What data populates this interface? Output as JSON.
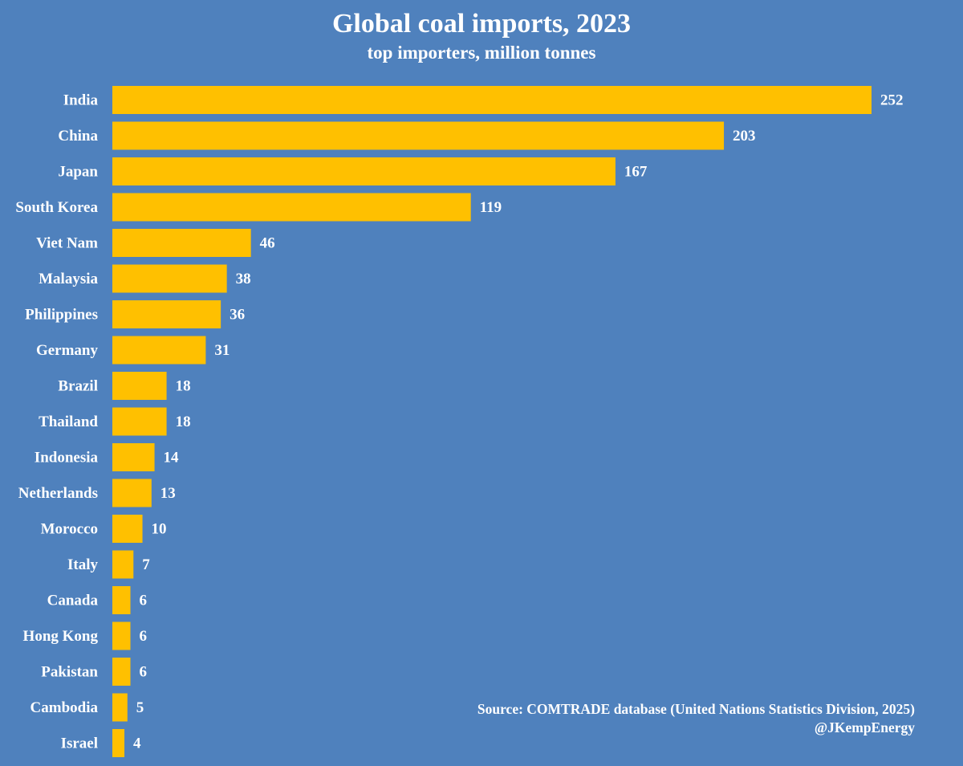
{
  "chart_data": {
    "type": "bar",
    "orientation": "horizontal",
    "title": "Global coal imports, 2023",
    "subtitle": "top importers, million tonnes",
    "categories": [
      "India",
      "China",
      "Japan",
      "South Korea",
      "Viet Nam",
      "Malaysia",
      "Philippines",
      "Germany",
      "Brazil",
      "Thailand",
      "Indonesia",
      "Netherlands",
      "Morocco",
      "Italy",
      "Canada",
      "Hong Kong",
      "Pakistan",
      "Cambodia",
      "Israel"
    ],
    "values": [
      252,
      203,
      167,
      119,
      46,
      38,
      36,
      31,
      18,
      18,
      14,
      13,
      10,
      7,
      6,
      6,
      6,
      5,
      4
    ],
    "xlabel": "",
    "ylabel": "",
    "xlim": [
      0,
      252
    ],
    "grid": false,
    "bar_color": "#ffc000",
    "background_color": "#4f81bd"
  },
  "source": {
    "line1": "Source: COMTRADE database (United Nations Statistics Division, 2025)",
    "line2": "@JKempEnergy"
  }
}
